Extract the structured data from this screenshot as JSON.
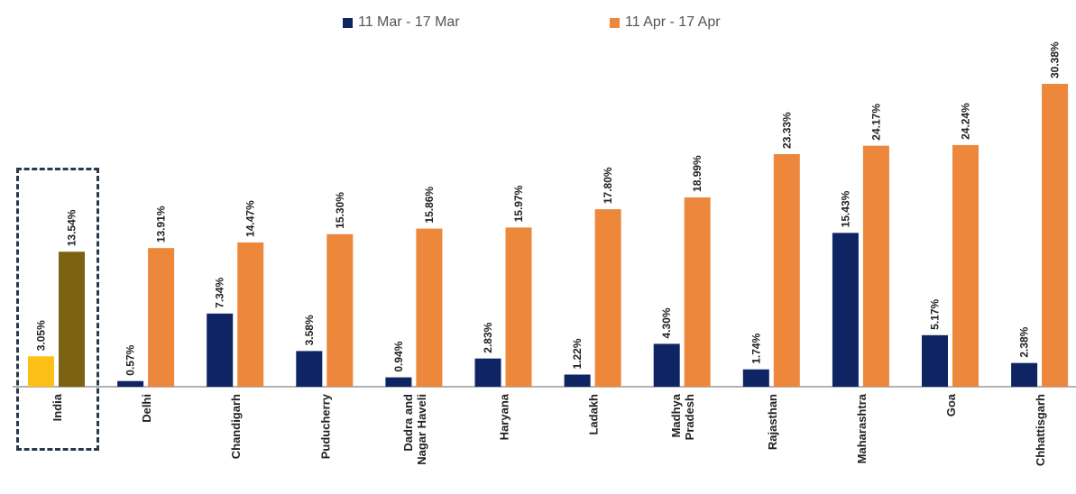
{
  "chart_data": {
    "type": "bar",
    "categories": [
      "India",
      "Delhi",
      "Chandigarh",
      "Puducherry",
      "Dadra and Nagar Haveli",
      "Haryana",
      "Ladakh",
      "Madhya Pradesh",
      "Rajasthan",
      "Maharashtra",
      "Goa",
      "Chhattisgarh"
    ],
    "category_lines": [
      [
        "India"
      ],
      [
        "Delhi"
      ],
      [
        "Chandigarh"
      ],
      [
        "Puducherry"
      ],
      [
        "Dadra and",
        "Nagar Haveli"
      ],
      [
        "Haryana"
      ],
      [
        "Ladakh"
      ],
      [
        "Madhya",
        "Pradesh"
      ],
      [
        "Rajasthan"
      ],
      [
        "Maharashtra"
      ],
      [
        "Goa"
      ],
      [
        "Chhattisgarh"
      ]
    ],
    "series": [
      {
        "name": "11 Mar - 17 Mar",
        "color": "#0f2463",
        "values": [
          3.05,
          0.57,
          7.34,
          3.58,
          0.94,
          2.83,
          1.22,
          4.3,
          1.74,
          15.43,
          5.17,
          2.38
        ],
        "labels": [
          "3.05%",
          "0.57%",
          "7.34%",
          "3.58%",
          "0.94%",
          "2.83%",
          "1.22%",
          "4.30%",
          "1.74%",
          "15.43%",
          "5.17%",
          "2.38%"
        ]
      },
      {
        "name": "11 Apr -  17 Apr",
        "color": "#ec873b",
        "values": [
          13.54,
          13.91,
          14.47,
          15.3,
          15.86,
          15.97,
          17.8,
          18.99,
          23.33,
          24.17,
          24.24,
          30.38
        ],
        "labels": [
          "13.54%",
          "13.91%",
          "14.47%",
          "15.30%",
          "15.86%",
          "15.97%",
          "17.80%",
          "18.99%",
          "23.33%",
          "24.17%",
          "24.24%",
          "30.38%"
        ]
      }
    ],
    "highlight": {
      "category": "India",
      "colors": [
        "#fcc016",
        "#7a6210"
      ]
    },
    "ylim": [
      0,
      32
    ],
    "grid": false,
    "legend": "top-center",
    "xlabel": "",
    "ylabel": "",
    "title": ""
  }
}
